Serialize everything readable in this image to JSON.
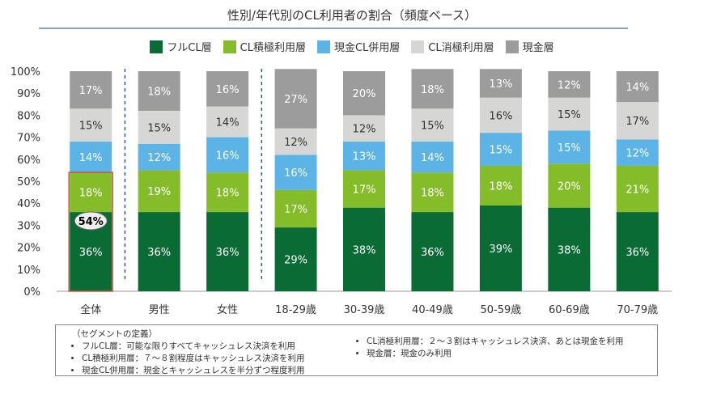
{
  "chart_data": {
    "type": "bar",
    "stacked": true,
    "title": "性別/年代別のCL利用者の割合（頻度ベース）",
    "categories": [
      "全体",
      "男性",
      "女性",
      "18-29歳",
      "30-39歳",
      "40-49歳",
      "50-59歳",
      "60-69歳",
      "70-79歳"
    ],
    "series": [
      {
        "name": "フルCL層",
        "color": "#0b6b35",
        "values": [
          36,
          36,
          36,
          29,
          38,
          36,
          39,
          38,
          36
        ]
      },
      {
        "name": "CL積極利用層",
        "color": "#85bd2a",
        "values": [
          18,
          19,
          18,
          17,
          17,
          18,
          18,
          20,
          21
        ]
      },
      {
        "name": "現金CL併用層",
        "color": "#5cb3e6",
        "values": [
          14,
          12,
          16,
          16,
          13,
          14,
          15,
          15,
          12
        ]
      },
      {
        "name": "CL消極利用層",
        "color": "#d6d6d4",
        "values": [
          15,
          15,
          14,
          12,
          12,
          15,
          16,
          15,
          17
        ]
      },
      {
        "name": "現金層",
        "color": "#9c9c9c",
        "values": [
          17,
          18,
          16,
          27,
          20,
          18,
          13,
          12,
          14
        ]
      }
    ],
    "ylim": [
      0,
      100
    ],
    "yticks": [
      "0%",
      "10%",
      "20%",
      "30%",
      "40%",
      "50%",
      "60%",
      "70%",
      "80%",
      "90%",
      "100%"
    ],
    "annotation": "54%",
    "legend": "top"
  },
  "notes": {
    "heading": "（セグメントの定義）",
    "left": [
      "フルCL層：可能な限りすべてキャッシュレス決済を利用",
      "CL積極利用層：７～８割程度はキャッシュレス決済を利用",
      "現金CL併用層：現金とキャッシュレスを半分ずつ程度利用"
    ],
    "right": [
      "CL消極利用層：２～３割はキャッシュレス決済、あとは現金を利用",
      "現金層：現金のみ利用"
    ]
  }
}
